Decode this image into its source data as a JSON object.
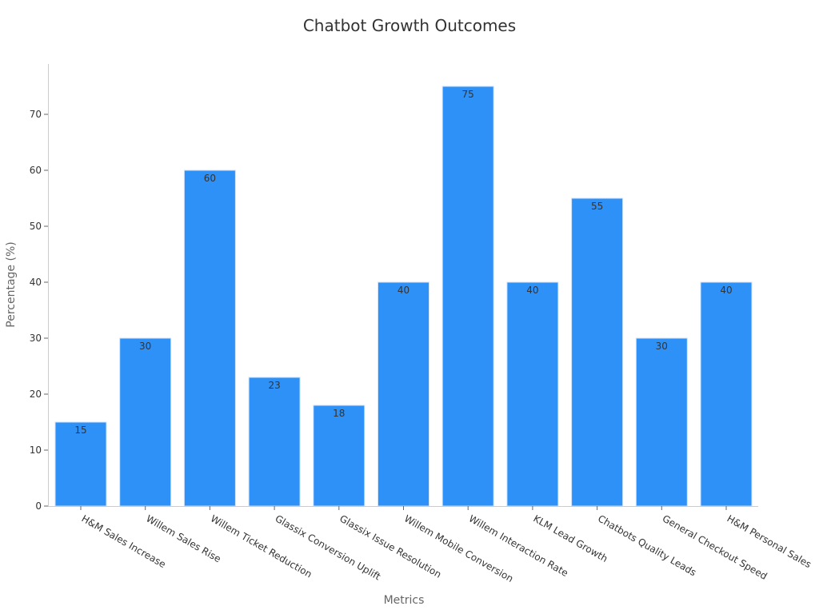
{
  "chart_data": {
    "type": "bar",
    "title": "Chatbot Growth Outcomes",
    "xlabel": "Metrics",
    "ylabel": "Percentage (%)",
    "categories": [
      "H&M Sales Increase",
      "Willem Sales Rise",
      "Willem Ticket Reduction",
      "Glassix Conversion Uplift",
      "Glassix Issue Resolution",
      "Willem Mobile Conversion",
      "Willem Interaction Rate",
      "KLM Lead Growth",
      "Chatbots Quality Leads",
      "General Checkout Speed",
      "H&M Personal Sales"
    ],
    "values": [
      15,
      30,
      60,
      23,
      18,
      40,
      75,
      40,
      55,
      30,
      40
    ],
    "data_labels": [
      "15",
      "30",
      "60",
      "23",
      "18",
      "40",
      "75",
      "40",
      "55",
      "30",
      "40"
    ],
    "yticks": [
      "0",
      "10",
      "20",
      "30",
      "40",
      "50",
      "60",
      "70"
    ],
    "ylim": [
      0,
      79
    ],
    "grid": false,
    "legend": "none",
    "bar_color": "#2e91f7",
    "bar_edge_color": "#cfe3fb"
  }
}
